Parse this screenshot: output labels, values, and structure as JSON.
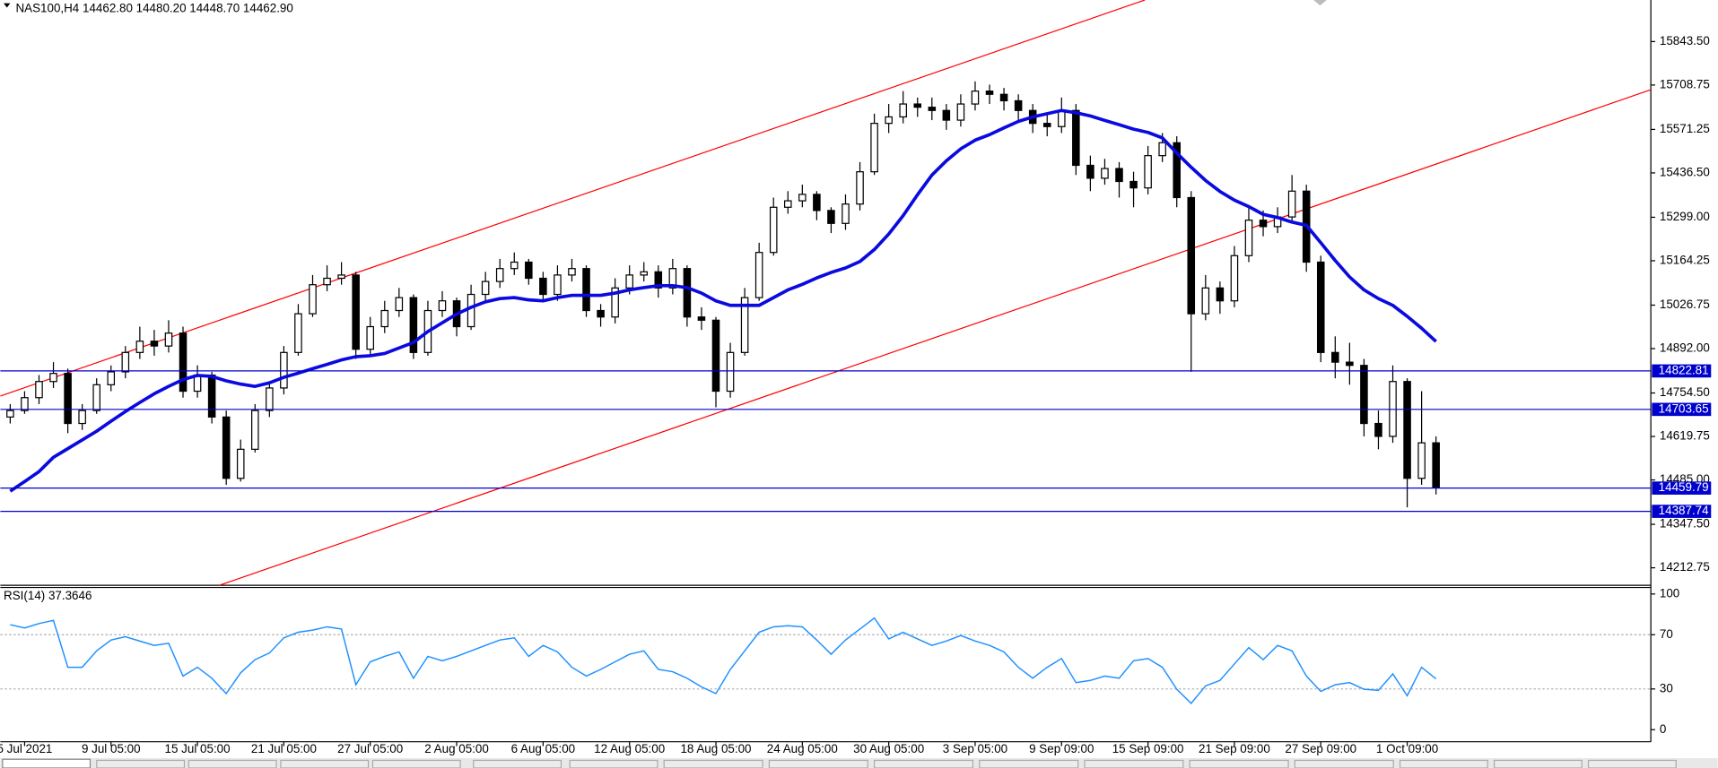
{
  "chart_data": [
    {
      "type": "candlestick",
      "title": "NAS100,H4  14462.80 14480.20 14448.70 14462.90",
      "categories": [
        null,
        "5 Jul 2021",
        null,
        null,
        null,
        null,
        null,
        "9 Jul 05:00",
        null,
        null,
        null,
        null,
        null,
        "15 Jul 05:00",
        null,
        null,
        null,
        null,
        null,
        "21 Jul 05:00",
        null,
        null,
        null,
        null,
        null,
        "27 Jul 05:00",
        null,
        null,
        null,
        null,
        null,
        "2 Aug 05:00",
        null,
        null,
        null,
        null,
        null,
        "6 Aug 05:00",
        null,
        null,
        null,
        null,
        null,
        "12 Aug 05:00",
        null,
        null,
        null,
        null,
        null,
        "18 Aug 05:00",
        null,
        null,
        null,
        null,
        null,
        "24 Aug 05:00",
        null,
        null,
        null,
        null,
        null,
        "30 Aug 05:00",
        null,
        null,
        null,
        null,
        null,
        "3 Sep 05:00",
        null,
        null,
        null,
        null,
        null,
        "9 Sep 09:00",
        null,
        null,
        null,
        null,
        null,
        "15 Sep 09:00",
        null,
        null,
        null,
        null,
        null,
        "21 Sep 09:00",
        null,
        null,
        null,
        null,
        null,
        "27 Sep 09:00",
        null,
        null,
        null,
        null,
        null,
        "1 Oct 09:00",
        null,
        null
      ],
      "ohlc": [
        [
          14680,
          14720,
          14660,
          14700
        ],
        [
          14700,
          14760,
          14690,
          14740
        ],
        [
          14740,
          14810,
          14720,
          14790
        ],
        [
          14790,
          14850,
          14770,
          14815
        ],
        [
          14815,
          14830,
          14630,
          14660
        ],
        [
          14660,
          14720,
          14640,
          14700
        ],
        [
          14700,
          14800,
          14690,
          14780
        ],
        [
          14780,
          14840,
          14760,
          14820
        ],
        [
          14820,
          14900,
          14800,
          14880
        ],
        [
          14880,
          14960,
          14860,
          14915
        ],
        [
          14915,
          14950,
          14870,
          14900
        ],
        [
          14900,
          14980,
          14880,
          14940
        ],
        [
          14940,
          14960,
          14740,
          14760
        ],
        [
          14760,
          14840,
          14740,
          14810
        ],
        [
          14810,
          14820,
          14660,
          14680
        ],
        [
          14680,
          14700,
          14470,
          14490
        ],
        [
          14490,
          14610,
          14480,
          14580
        ],
        [
          14580,
          14720,
          14570,
          14700
        ],
        [
          14700,
          14790,
          14680,
          14770
        ],
        [
          14770,
          14900,
          14750,
          14880
        ],
        [
          14880,
          15030,
          14870,
          15000
        ],
        [
          15000,
          15120,
          14990,
          15090
        ],
        [
          15090,
          15150,
          15070,
          15110
        ],
        [
          15110,
          15160,
          15090,
          15120
        ],
        [
          15120,
          15130,
          14860,
          14890
        ],
        [
          14890,
          14990,
          14870,
          14960
        ],
        [
          14960,
          15040,
          14940,
          15010
        ],
        [
          15010,
          15080,
          14990,
          15050
        ],
        [
          15050,
          15060,
          14860,
          14880
        ],
        [
          14880,
          15040,
          14870,
          15010
        ],
        [
          15010,
          15070,
          14990,
          15040
        ],
        [
          15040,
          15050,
          14930,
          14960
        ],
        [
          14960,
          15090,
          14950,
          15060
        ],
        [
          15060,
          15130,
          15040,
          15100
        ],
        [
          15100,
          15170,
          15080,
          15140
        ],
        [
          15140,
          15190,
          15120,
          15160
        ],
        [
          15160,
          15170,
          15090,
          15110
        ],
        [
          15110,
          15130,
          15040,
          15060
        ],
        [
          15060,
          15150,
          15040,
          15120
        ],
        [
          15120,
          15170,
          15100,
          15140
        ],
        [
          15140,
          15150,
          14990,
          15010
        ],
        [
          15010,
          15030,
          14960,
          14990
        ],
        [
          14990,
          15110,
          14970,
          15080
        ],
        [
          15080,
          15150,
          15060,
          15120
        ],
        [
          15120,
          15160,
          15100,
          15130
        ],
        [
          15130,
          15150,
          15050,
          15080
        ],
        [
          15080,
          15170,
          15060,
          15140
        ],
        [
          15140,
          15150,
          14960,
          14990
        ],
        [
          14990,
          15020,
          14950,
          14980
        ],
        [
          14980,
          14990,
          14710,
          14760
        ],
        [
          14760,
          14910,
          14740,
          14880
        ],
        [
          14880,
          15080,
          14870,
          15050
        ],
        [
          15050,
          15220,
          15040,
          15190
        ],
        [
          15190,
          15360,
          15180,
          15330
        ],
        [
          15330,
          15380,
          15310,
          15350
        ],
        [
          15350,
          15400,
          15330,
          15370
        ],
        [
          15370,
          15380,
          15290,
          15320
        ],
        [
          15320,
          15330,
          15250,
          15280
        ],
        [
          15280,
          15370,
          15260,
          15340
        ],
        [
          15340,
          15470,
          15320,
          15440
        ],
        [
          15440,
          15620,
          15430,
          15590
        ],
        [
          15590,
          15650,
          15560,
          15610
        ],
        [
          15610,
          15690,
          15590,
          15650
        ],
        [
          15650,
          15670,
          15610,
          15640
        ],
        [
          15640,
          15670,
          15600,
          15630
        ],
        [
          15630,
          15650,
          15570,
          15600
        ],
        [
          15600,
          15680,
          15580,
          15650
        ],
        [
          15650,
          15720,
          15630,
          15690
        ],
        [
          15690,
          15710,
          15650,
          15680
        ],
        [
          15680,
          15700,
          15630,
          15660
        ],
        [
          15660,
          15680,
          15600,
          15630
        ],
        [
          15630,
          15650,
          15560,
          15590
        ],
        [
          15590,
          15620,
          15550,
          15580
        ],
        [
          15580,
          15670,
          15560,
          15630
        ],
        [
          15630,
          15650,
          15430,
          15460
        ],
        [
          15460,
          15490,
          15380,
          15420
        ],
        [
          15420,
          15480,
          15400,
          15450
        ],
        [
          15450,
          15470,
          15360,
          15410
        ],
        [
          15410,
          15440,
          15330,
          15390
        ],
        [
          15390,
          15520,
          15370,
          15490
        ],
        [
          15490,
          15560,
          15470,
          15530
        ],
        [
          15530,
          15550,
          15330,
          15360
        ],
        [
          15360,
          15380,
          14820,
          15000
        ],
        [
          15000,
          15120,
          14980,
          15080
        ],
        [
          15080,
          15100,
          15000,
          15040
        ],
        [
          15040,
          15210,
          15020,
          15180
        ],
        [
          15180,
          15330,
          15160,
          15290
        ],
        [
          15290,
          15320,
          15240,
          15270
        ],
        [
          15270,
          15330,
          15250,
          15300
        ],
        [
          15300,
          15430,
          15280,
          15380
        ],
        [
          15380,
          15400,
          15130,
          15160
        ],
        [
          15160,
          15180,
          14850,
          14880
        ],
        [
          14880,
          14930,
          14800,
          14850
        ],
        [
          14850,
          14910,
          14780,
          14840
        ],
        [
          14840,
          14860,
          14620,
          14660
        ],
        [
          14660,
          14700,
          14580,
          14620
        ],
        [
          14620,
          14840,
          14600,
          14790
        ],
        [
          14790,
          14800,
          14400,
          14490
        ],
        [
          14490,
          14760,
          14470,
          14600
        ],
        [
          14600,
          14620,
          14440,
          14462.9
        ]
      ],
      "moving_average": [
        14450,
        14480,
        14511,
        14555,
        14582,
        14609,
        14636,
        14667,
        14697,
        14725,
        14752,
        14775,
        14796,
        14809,
        14806,
        14792,
        14782,
        14775,
        14786,
        14803,
        14816,
        14830,
        14843,
        14857,
        14867,
        14870,
        14877,
        14894,
        14911,
        14945,
        14972,
        14999,
        15020,
        15037,
        15047,
        15050,
        15043,
        15040,
        15050,
        15057,
        15057,
        15057,
        15064,
        15074,
        15081,
        15087,
        15087,
        15081,
        15064,
        15040,
        15026,
        15026,
        15026,
        15050,
        15074,
        15091,
        15111,
        15128,
        15142,
        15162,
        15199,
        15247,
        15304,
        15369,
        15430,
        15474,
        15511,
        15538,
        15555,
        15576,
        15596,
        15610,
        15620,
        15630,
        15623,
        15613,
        15599,
        15586,
        15572,
        15562,
        15545,
        15498,
        15454,
        15413,
        15379,
        15352,
        15332,
        15308,
        15298,
        15284,
        15274,
        15220,
        15165,
        15114,
        15074,
        15047,
        15026,
        14992,
        14955,
        14914
      ],
      "moving_average_color": "#0a0ae0",
      "levels": [
        14822.81,
        14703.65,
        14459.79,
        14387.74
      ],
      "level_color": "#0000cd",
      "up_color": "#ffffff",
      "down_color": "#000000",
      "ylim": [
        14158.5,
        15972.3
      ],
      "yticks": [
        {
          "value": 15843.5,
          "label": "15843.50"
        },
        {
          "value": 15708.75,
          "label": "15708.75"
        },
        {
          "value": 15571.25,
          "label": "15571.25"
        },
        {
          "value": 15436.5,
          "label": "15436.50"
        },
        {
          "value": 15299,
          "label": "15299.00"
        },
        {
          "value": 15164.25,
          "label": "15164.25"
        },
        {
          "value": 15026.75,
          "label": "15026.75"
        },
        {
          "value": 14892,
          "label": "14892.00"
        },
        {
          "value": 14754.5,
          "label": "14754.50"
        },
        {
          "value": 14619.75,
          "label": "14619.75"
        },
        {
          "value": 14485,
          "label": "14485.00"
        },
        {
          "value": 14347.5,
          "label": "14347.50"
        },
        {
          "value": 14212.75,
          "label": "14212.75"
        }
      ]
    },
    {
      "type": "line",
      "title": "RSI(14) 37.3646",
      "values": [
        77.4,
        75.0,
        78.2,
        80.6,
        46.0,
        46.0,
        58.1,
        66.1,
        68.5,
        65.3,
        62.1,
        63.7,
        39.5,
        46.0,
        37.9,
        26.6,
        41.9,
        51.6,
        56.5,
        67.7,
        71.8,
        73.4,
        75.8,
        74.2,
        33.1,
        50.0,
        54.0,
        57.3,
        37.9,
        54.0,
        50.8,
        54.0,
        58.1,
        62.1,
        66.1,
        67.7,
        54.0,
        62.1,
        57.3,
        46.0,
        39.5,
        44.4,
        50.0,
        55.6,
        58.1,
        44.4,
        42.7,
        37.9,
        31.5,
        26.6,
        44.4,
        58.1,
        71.8,
        75.8,
        76.6,
        75.8,
        66.1,
        55.6,
        66.1,
        74.2,
        82.3,
        66.9,
        71.8,
        66.9,
        62.1,
        65.3,
        69.4,
        65.3,
        62.1,
        57.3,
        46.0,
        37.9,
        46.0,
        52.4,
        34.7,
        36.3,
        39.5,
        37.9,
        50.8,
        52.4,
        46.0,
        29.8,
        19.4,
        32.3,
        36.3,
        48.4,
        60.5,
        51.6,
        62.1,
        58.1,
        39.5,
        28.2,
        33.1,
        34.7,
        29.8,
        29.0,
        41.1,
        25.0,
        46.0,
        37.4
      ],
      "color": "#1e90ff",
      "levels": [
        70,
        30
      ],
      "ylim": [
        -8.9,
        104.8
      ],
      "yticks": [
        100,
        70,
        30,
        0
      ]
    }
  ]
}
